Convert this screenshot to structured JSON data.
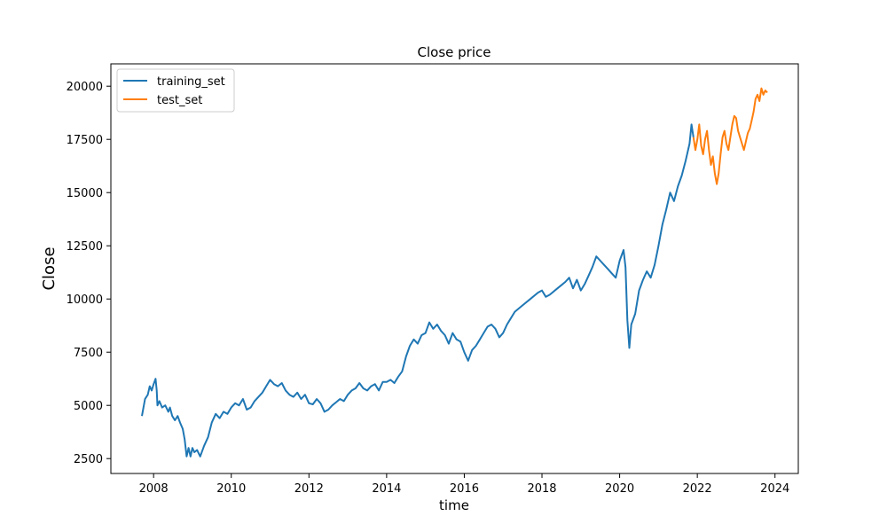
{
  "chart_data": {
    "type": "line",
    "title": "Close price",
    "xlabel": "time",
    "ylabel": "Close",
    "xlim": [
      2006.9,
      2024.6
    ],
    "ylim": [
      1800,
      21050
    ],
    "xticks": [
      2008,
      2010,
      2012,
      2014,
      2016,
      2018,
      2020,
      2022,
      2024
    ],
    "yticks": [
      2500,
      5000,
      7500,
      10000,
      12500,
      15000,
      17500,
      20000
    ],
    "grid": false,
    "legend_position": "top-left",
    "series": [
      {
        "name": "training_set",
        "color": "#1f77b4",
        "points": [
          [
            2007.7,
            4500
          ],
          [
            2007.78,
            5300
          ],
          [
            2007.85,
            5500
          ],
          [
            2007.9,
            5900
          ],
          [
            2007.95,
            5700
          ],
          [
            2008.0,
            6000
          ],
          [
            2008.05,
            6250
          ],
          [
            2008.08,
            5700
          ],
          [
            2008.1,
            5000
          ],
          [
            2008.15,
            5200
          ],
          [
            2008.22,
            4900
          ],
          [
            2008.3,
            5000
          ],
          [
            2008.38,
            4700
          ],
          [
            2008.42,
            4900
          ],
          [
            2008.48,
            4500
          ],
          [
            2008.55,
            4300
          ],
          [
            2008.62,
            4500
          ],
          [
            2008.68,
            4200
          ],
          [
            2008.75,
            3900
          ],
          [
            2008.8,
            3400
          ],
          [
            2008.85,
            2600
          ],
          [
            2008.9,
            3000
          ],
          [
            2008.95,
            2600
          ],
          [
            2009.0,
            3000
          ],
          [
            2009.05,
            2800
          ],
          [
            2009.12,
            2900
          ],
          [
            2009.2,
            2600
          ],
          [
            2009.3,
            3100
          ],
          [
            2009.4,
            3500
          ],
          [
            2009.5,
            4200
          ],
          [
            2009.6,
            4600
          ],
          [
            2009.7,
            4400
          ],
          [
            2009.8,
            4700
          ],
          [
            2009.9,
            4600
          ],
          [
            2010.0,
            4900
          ],
          [
            2010.1,
            5100
          ],
          [
            2010.2,
            5000
          ],
          [
            2010.3,
            5300
          ],
          [
            2010.4,
            4800
          ],
          [
            2010.5,
            4900
          ],
          [
            2010.6,
            5200
          ],
          [
            2010.7,
            5400
          ],
          [
            2010.8,
            5600
          ],
          [
            2010.9,
            5900
          ],
          [
            2011.0,
            6200
          ],
          [
            2011.1,
            6000
          ],
          [
            2011.2,
            5900
          ],
          [
            2011.3,
            6050
          ],
          [
            2011.4,
            5700
          ],
          [
            2011.5,
            5500
          ],
          [
            2011.6,
            5400
          ],
          [
            2011.7,
            5600
          ],
          [
            2011.8,
            5300
          ],
          [
            2011.9,
            5500
          ],
          [
            2012.0,
            5100
          ],
          [
            2012.1,
            5050
          ],
          [
            2012.2,
            5300
          ],
          [
            2012.3,
            5100
          ],
          [
            2012.4,
            4700
          ],
          [
            2012.5,
            4800
          ],
          [
            2012.6,
            5000
          ],
          [
            2012.7,
            5150
          ],
          [
            2012.8,
            5300
          ],
          [
            2012.9,
            5200
          ],
          [
            2013.0,
            5500
          ],
          [
            2013.1,
            5700
          ],
          [
            2013.2,
            5800
          ],
          [
            2013.3,
            6050
          ],
          [
            2013.4,
            5800
          ],
          [
            2013.5,
            5700
          ],
          [
            2013.6,
            5900
          ],
          [
            2013.7,
            6000
          ],
          [
            2013.8,
            5700
          ],
          [
            2013.9,
            6100
          ],
          [
            2014.0,
            6100
          ],
          [
            2014.1,
            6200
          ],
          [
            2014.2,
            6050
          ],
          [
            2014.3,
            6350
          ],
          [
            2014.4,
            6600
          ],
          [
            2014.5,
            7300
          ],
          [
            2014.6,
            7800
          ],
          [
            2014.7,
            8100
          ],
          [
            2014.8,
            7900
          ],
          [
            2014.9,
            8300
          ],
          [
            2015.0,
            8400
          ],
          [
            2015.1,
            8900
          ],
          [
            2015.2,
            8600
          ],
          [
            2015.3,
            8800
          ],
          [
            2015.4,
            8500
          ],
          [
            2015.5,
            8300
          ],
          [
            2015.6,
            7900
          ],
          [
            2015.7,
            8400
          ],
          [
            2015.8,
            8100
          ],
          [
            2015.9,
            8000
          ],
          [
            2016.0,
            7500
          ],
          [
            2016.1,
            7100
          ],
          [
            2016.2,
            7600
          ],
          [
            2016.3,
            7800
          ],
          [
            2016.4,
            8100
          ],
          [
            2016.5,
            8400
          ],
          [
            2016.6,
            8700
          ],
          [
            2016.7,
            8800
          ],
          [
            2016.8,
            8600
          ],
          [
            2016.9,
            8200
          ],
          [
            2017.0,
            8400
          ],
          [
            2017.1,
            8800
          ],
          [
            2017.2,
            9100
          ],
          [
            2017.3,
            9400
          ],
          [
            2017.5,
            9700
          ],
          [
            2017.7,
            10000
          ],
          [
            2017.9,
            10300
          ],
          [
            2018.0,
            10400
          ],
          [
            2018.1,
            10100
          ],
          [
            2018.2,
            10200
          ],
          [
            2018.4,
            10500
          ],
          [
            2018.6,
            10800
          ],
          [
            2018.7,
            11000
          ],
          [
            2018.8,
            10500
          ],
          [
            2018.9,
            10900
          ],
          [
            2019.0,
            10400
          ],
          [
            2019.1,
            10700
          ],
          [
            2019.2,
            11100
          ],
          [
            2019.3,
            11500
          ],
          [
            2019.4,
            12000
          ],
          [
            2019.5,
            11800
          ],
          [
            2019.6,
            11600
          ],
          [
            2019.7,
            11400
          ],
          [
            2019.8,
            11200
          ],
          [
            2019.9,
            11000
          ],
          [
            2020.0,
            11800
          ],
          [
            2020.1,
            12300
          ],
          [
            2020.15,
            11500
          ],
          [
            2020.2,
            9000
          ],
          [
            2020.25,
            7700
          ],
          [
            2020.3,
            8800
          ],
          [
            2020.4,
            9300
          ],
          [
            2020.5,
            10400
          ],
          [
            2020.6,
            10900
          ],
          [
            2020.7,
            11300
          ],
          [
            2020.8,
            11000
          ],
          [
            2020.9,
            11600
          ],
          [
            2021.0,
            12500
          ],
          [
            2021.1,
            13500
          ],
          [
            2021.2,
            14200
          ],
          [
            2021.3,
            15000
          ],
          [
            2021.4,
            14600
          ],
          [
            2021.5,
            15300
          ],
          [
            2021.6,
            15800
          ],
          [
            2021.7,
            16500
          ],
          [
            2021.8,
            17300
          ],
          [
            2021.85,
            18200
          ],
          [
            2021.9,
            17600
          ]
        ]
      },
      {
        "name": "test_set",
        "color": "#ff7f0e",
        "points": [
          [
            2021.9,
            17600
          ],
          [
            2021.95,
            17000
          ],
          [
            2022.0,
            17500
          ],
          [
            2022.05,
            18200
          ],
          [
            2022.1,
            17200
          ],
          [
            2022.15,
            16800
          ],
          [
            2022.2,
            17500
          ],
          [
            2022.25,
            17900
          ],
          [
            2022.3,
            17000
          ],
          [
            2022.35,
            16300
          ],
          [
            2022.4,
            16700
          ],
          [
            2022.45,
            15900
          ],
          [
            2022.5,
            15400
          ],
          [
            2022.55,
            15900
          ],
          [
            2022.6,
            16800
          ],
          [
            2022.65,
            17600
          ],
          [
            2022.7,
            17900
          ],
          [
            2022.75,
            17300
          ],
          [
            2022.8,
            17000
          ],
          [
            2022.85,
            17600
          ],
          [
            2022.9,
            18200
          ],
          [
            2022.95,
            18600
          ],
          [
            2023.0,
            18500
          ],
          [
            2023.05,
            17900
          ],
          [
            2023.1,
            17600
          ],
          [
            2023.15,
            17300
          ],
          [
            2023.2,
            17000
          ],
          [
            2023.25,
            17400
          ],
          [
            2023.3,
            17800
          ],
          [
            2023.35,
            18000
          ],
          [
            2023.4,
            18400
          ],
          [
            2023.45,
            18800
          ],
          [
            2023.5,
            19400
          ],
          [
            2023.55,
            19600
          ],
          [
            2023.6,
            19300
          ],
          [
            2023.65,
            19900
          ],
          [
            2023.7,
            19600
          ],
          [
            2023.75,
            19800
          ],
          [
            2023.8,
            19700
          ]
        ]
      }
    ]
  }
}
